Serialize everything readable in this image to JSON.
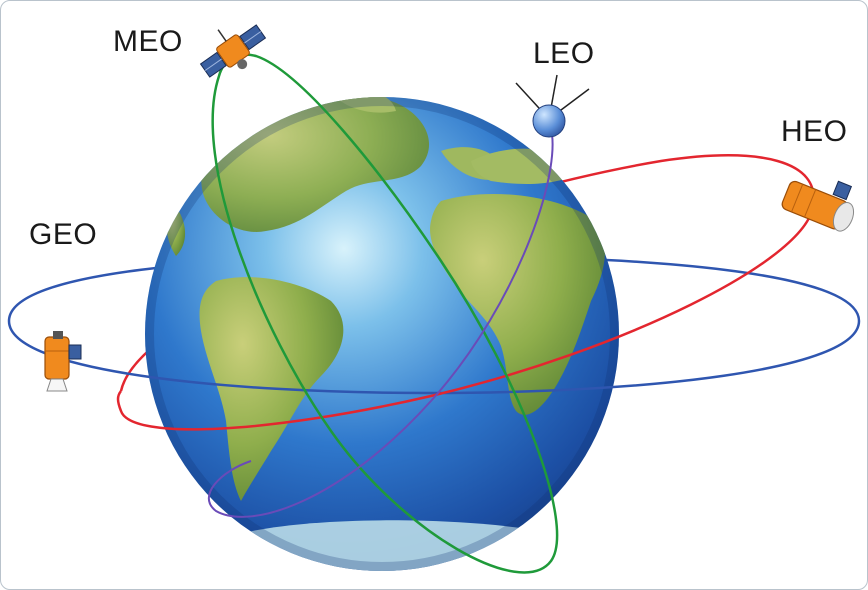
{
  "diagram": {
    "labels": {
      "meo": "MEO",
      "leo": "LEO",
      "heo": "HEO",
      "geo": "GEO"
    },
    "colors": {
      "geo_orbit": "#2f56b0",
      "heo_orbit": "#e3262f",
      "meo_orbit": "#1f9a3a",
      "leo_orbit": "#6a4bb8",
      "ocean": "#2d6fc4",
      "land": "#7fa040",
      "satellite_body": "#f08a1e"
    }
  }
}
